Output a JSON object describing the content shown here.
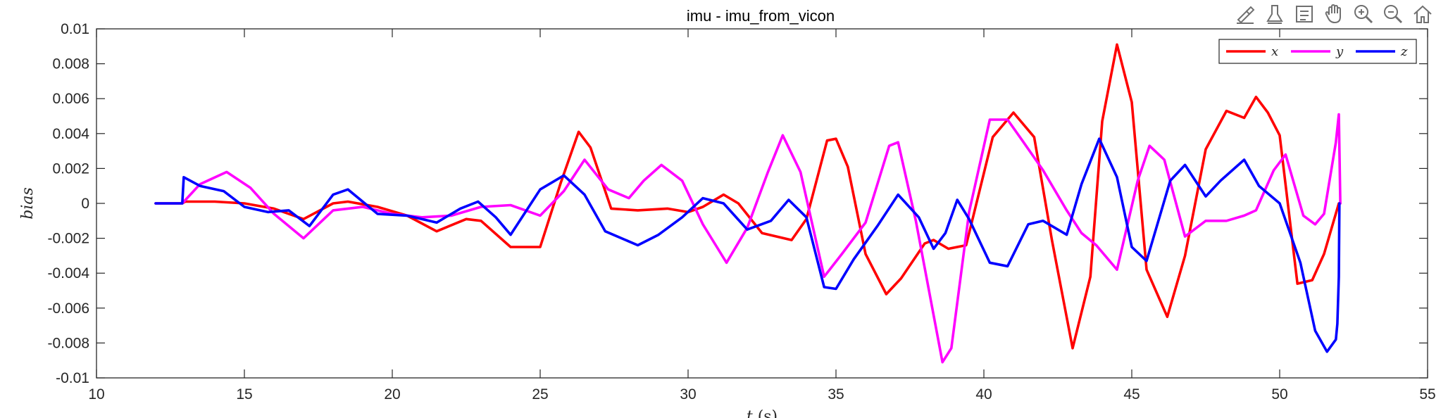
{
  "chart_data": {
    "type": "line",
    "title": "imu - imu_from_vicon",
    "xlabel": "t (s)",
    "ylabel": "bias",
    "xlim": [
      10,
      55
    ],
    "ylim": [
      -0.01,
      0.01
    ],
    "xticks": [
      10,
      15,
      20,
      25,
      30,
      35,
      40,
      45,
      50,
      55
    ],
    "yticks": [
      -0.01,
      -0.008,
      -0.006,
      -0.004,
      -0.002,
      0,
      0.002,
      0.004,
      0.006,
      0.008,
      0.01
    ],
    "ytick_labels": [
      "-0.01",
      "-0.008",
      "-0.006",
      "-0.004",
      "-0.002",
      "0",
      "0.002",
      "0.004",
      "0.006",
      "0.008",
      "0.01"
    ],
    "grid": false,
    "legend_position": "top-right",
    "series": [
      {
        "name": "x",
        "color": "#ff0000",
        "x": [
          12,
          12.9,
          13,
          14,
          15,
          16,
          17,
          18,
          18.5,
          19.5,
          20.5,
          21.5,
          22.5,
          23,
          24,
          25,
          25.7,
          26.3,
          26.7,
          27.4,
          28.3,
          29.3,
          30,
          30.5,
          31.2,
          31.7,
          32.5,
          33.5,
          34,
          34.7,
          35,
          35.4,
          36,
          36.7,
          37.2,
          38,
          38.3,
          38.8,
          39.4,
          40.3,
          41,
          41.7,
          42.3,
          43,
          43.6,
          44,
          44.5,
          45,
          45.5,
          46.2,
          46.8,
          47.5,
          48.2,
          48.8,
          49.2,
          49.6,
          50,
          50.6,
          51.1,
          51.5,
          52,
          52.05
        ],
        "y": [
          0,
          0,
          0.0001,
          0.0001,
          0,
          -0.0003,
          -0.0009,
          0,
          0.0001,
          -0.0002,
          -0.0007,
          -0.0016,
          -0.0009,
          -0.001,
          -0.0025,
          -0.0025,
          0.0012,
          0.0041,
          0.0032,
          -0.0003,
          -0.0004,
          -0.0003,
          -0.0005,
          -0.0002,
          0.0005,
          0,
          -0.0017,
          -0.0021,
          -0.0009,
          0.0036,
          0.0037,
          0.0021,
          -0.0029,
          -0.0052,
          -0.0043,
          -0.0023,
          -0.0021,
          -0.0026,
          -0.0024,
          0.0038,
          0.0052,
          0.0038,
          -0.0021,
          -0.0083,
          -0.0042,
          0.0047,
          0.0091,
          0.0058,
          -0.0038,
          -0.0065,
          -0.003,
          0.0031,
          0.0053,
          0.0049,
          0.0061,
          0.0052,
          0.0039,
          -0.0046,
          -0.0044,
          -0.0029,
          0,
          0
        ]
      },
      {
        "name": "y",
        "color": "#ff00ff",
        "x": [
          12,
          12.9,
          13.5,
          14.4,
          15.2,
          16,
          17,
          18,
          19,
          20,
          21,
          22,
          23,
          24,
          25,
          25.8,
          26.5,
          27.3,
          28,
          28.5,
          29.1,
          29.8,
          30.5,
          31.3,
          32,
          32.7,
          33.2,
          33.8,
          34.6,
          35.2,
          36,
          36.8,
          37.1,
          37.7,
          38.6,
          38.9,
          39.5,
          40.2,
          40.8,
          41.3,
          42,
          42.8,
          43.3,
          43.8,
          44.5,
          45.2,
          45.6,
          46.1,
          46.8,
          47.5,
          48.2,
          48.8,
          49.2,
          49.8,
          50.2,
          50.8,
          51.2,
          51.5,
          51.9,
          52,
          52.05
        ],
        "y": [
          0,
          0,
          0.0011,
          0.0018,
          0.0009,
          -0.0006,
          -0.002,
          -0.0004,
          -0.0002,
          -0.0006,
          -0.0008,
          -0.0007,
          -0.0002,
          -0.0001,
          -0.0007,
          0.0007,
          0.0025,
          0.0008,
          0.0003,
          0.0013,
          0.0022,
          0.0013,
          -0.0012,
          -0.0034,
          -0.0014,
          0.0018,
          0.0039,
          0.0018,
          -0.0042,
          -0.0029,
          -0.0011,
          0.0033,
          0.0035,
          -0.001,
          -0.0091,
          -0.0083,
          -0.0005,
          0.0048,
          0.0048,
          0.0036,
          0.0019,
          -0.0004,
          -0.0017,
          -0.0024,
          -0.0038,
          0.0013,
          0.0033,
          0.0025,
          -0.0019,
          -0.001,
          -0.001,
          -0.0007,
          -0.0004,
          0.0019,
          0.0028,
          -0.0007,
          -0.0012,
          -0.0006,
          0.0035,
          0.0051,
          0
        ]
      },
      {
        "name": "z",
        "color": "#0000ff",
        "x": [
          12,
          12.9,
          12.95,
          13.5,
          14.3,
          15,
          15.8,
          16.5,
          17.2,
          18,
          18.5,
          19.5,
          20.5,
          21.5,
          22.3,
          22.9,
          23.5,
          24,
          25,
          25.8,
          26.5,
          27.2,
          28.3,
          29,
          29.8,
          30.5,
          31.2,
          32,
          32.8,
          33.4,
          34,
          34.6,
          35,
          35.6,
          36.4,
          37.1,
          37.8,
          38.3,
          38.7,
          39.1,
          39.5,
          40.2,
          40.8,
          41.5,
          42,
          42.8,
          43.3,
          43.9,
          44.5,
          45,
          45.5,
          46.3,
          46.8,
          47.5,
          48,
          48.8,
          49.3,
          50,
          50.7,
          51.2,
          51.6,
          51.9,
          51.95,
          52,
          52.02
        ],
        "y": [
          0,
          0,
          0.0015,
          0.001,
          0.0007,
          -0.0002,
          -0.0005,
          -0.0004,
          -0.0013,
          0.0005,
          0.0008,
          -0.0006,
          -0.0007,
          -0.0011,
          -0.0003,
          0.0001,
          -0.0008,
          -0.0018,
          0.0008,
          0.0016,
          0.0005,
          -0.0016,
          -0.0024,
          -0.0018,
          -0.0008,
          0.0003,
          0,
          -0.0015,
          -0.001,
          0.0002,
          -0.0008,
          -0.0048,
          -0.0049,
          -0.0032,
          -0.0013,
          0.0005,
          -0.0008,
          -0.0026,
          -0.0017,
          0.0002,
          -0.0009,
          -0.0034,
          -0.0036,
          -0.0012,
          -0.001,
          -0.0018,
          0.0011,
          0.0037,
          0.0015,
          -0.0025,
          -0.0033,
          0.0013,
          0.0022,
          0.0004,
          0.0013,
          0.0025,
          0.001,
          0,
          -0.0034,
          -0.0073,
          -0.0085,
          -0.0078,
          -0.0069,
          -0.0042,
          0
        ]
      }
    ]
  },
  "toolbar": {
    "icons": [
      "brush-icon",
      "data-tips-icon",
      "legend-toggle-icon",
      "pan-hand-icon",
      "zoom-in-icon",
      "zoom-out-icon",
      "home-icon"
    ]
  }
}
